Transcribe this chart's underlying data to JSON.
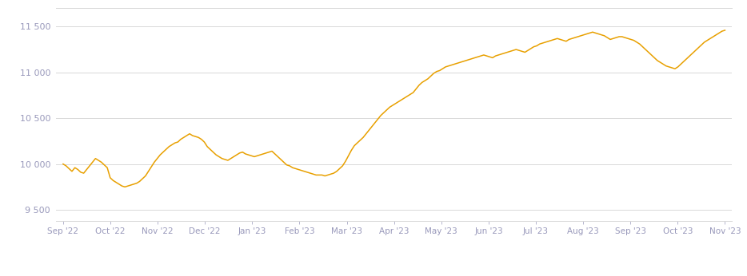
{
  "line_color": "#E8A000",
  "line_color_legend": "#D4920A",
  "background_color": "#ffffff",
  "grid_color": "#d8d8d8",
  "label_color": "#9999bb",
  "yticks": [
    9500,
    10000,
    10500,
    11000,
    11500
  ],
  "ylim": [
    9380,
    11700
  ],
  "xlabels": [
    "Sep '22",
    "Oct '22",
    "Nov '22",
    "Dec '22",
    "Jan '23",
    "Feb '23",
    "Mar '23",
    "Apr '23",
    "May '23",
    "Jun '23",
    "Jul '23",
    "Aug '23",
    "Sep '23",
    "Oct '23",
    "Nov '23"
  ],
  "values": [
    10000,
    9980,
    9950,
    9920,
    9960,
    9940,
    9910,
    9900,
    9940,
    9980,
    10020,
    10060,
    10040,
    10020,
    9990,
    9960,
    9850,
    9820,
    9800,
    9780,
    9760,
    9750,
    9760,
    9770,
    9780,
    9790,
    9810,
    9840,
    9870,
    9920,
    9970,
    10020,
    10060,
    10100,
    10130,
    10160,
    10190,
    10210,
    10230,
    10240,
    10270,
    10290,
    10310,
    10330,
    10310,
    10300,
    10290,
    10270,
    10240,
    10190,
    10160,
    10130,
    10100,
    10080,
    10060,
    10050,
    10040,
    10060,
    10080,
    10100,
    10120,
    10130,
    10110,
    10100,
    10090,
    10080,
    10090,
    10100,
    10110,
    10120,
    10130,
    10140,
    10110,
    10080,
    10050,
    10020,
    9990,
    9980,
    9960,
    9950,
    9940,
    9930,
    9920,
    9910,
    9900,
    9890,
    9880,
    9880,
    9880,
    9870,
    9880,
    9890,
    9900,
    9920,
    9950,
    9980,
    10030,
    10090,
    10150,
    10200,
    10230,
    10260,
    10290,
    10330,
    10370,
    10410,
    10450,
    10490,
    10530,
    10560,
    10590,
    10620,
    10640,
    10660,
    10680,
    10700,
    10720,
    10740,
    10760,
    10780,
    10820,
    10860,
    10890,
    10910,
    10930,
    10960,
    10990,
    11010,
    11020,
    11040,
    11060,
    11070,
    11080,
    11090,
    11100,
    11110,
    11120,
    11130,
    11140,
    11150,
    11160,
    11170,
    11180,
    11190,
    11180,
    11170,
    11160,
    11180,
    11190,
    11200,
    11210,
    11220,
    11230,
    11240,
    11250,
    11240,
    11230,
    11220,
    11240,
    11260,
    11280,
    11290,
    11310,
    11320,
    11330,
    11340,
    11350,
    11360,
    11370,
    11360,
    11350,
    11340,
    11360,
    11370,
    11380,
    11390,
    11400,
    11410,
    11420,
    11430,
    11440,
    11430,
    11420,
    11410,
    11400,
    11380,
    11360,
    11370,
    11380,
    11390,
    11390,
    11380,
    11370,
    11360,
    11350,
    11330,
    11310,
    11280,
    11250,
    11220,
    11190,
    11160,
    11130,
    11110,
    11090,
    11070,
    11060,
    11050,
    11040,
    11060,
    11090,
    11120,
    11150,
    11180,
    11210,
    11240,
    11270,
    11300,
    11330,
    11350,
    11370,
    11390,
    11410,
    11430,
    11450,
    11460
  ]
}
